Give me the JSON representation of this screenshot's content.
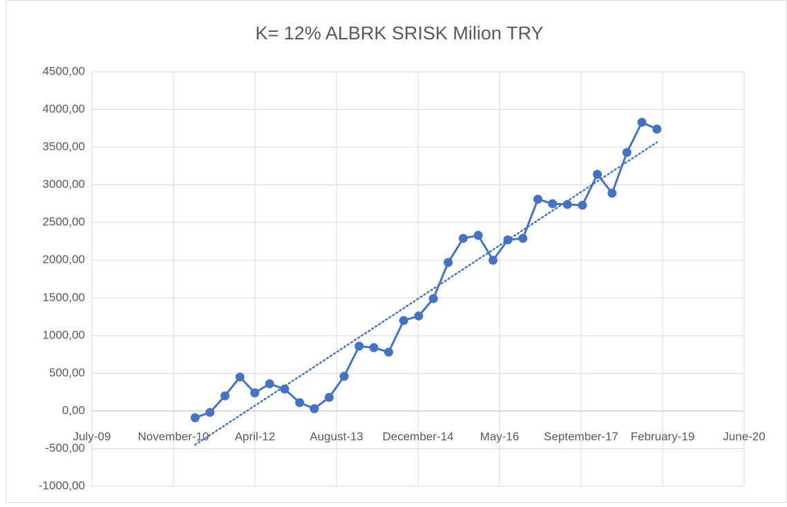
{
  "chart_data": {
    "type": "line",
    "title": "K= 12%  ALBRK SRISK Milion TRY",
    "x": [
      40633,
      40724,
      40816,
      40908,
      40999,
      41090,
      41182,
      41274,
      41364,
      41455,
      41547,
      41639,
      41729,
      41820,
      41912,
      42004,
      42094,
      42185,
      42277,
      42369,
      42460,
      42551,
      42643,
      42735,
      42825,
      42916,
      43008,
      43100,
      43190,
      43281,
      43373,
      43465
    ],
    "series": [
      {
        "color": "#4472c4",
        "values": [
          -90,
          -20,
          200,
          450,
          240,
          360,
          290,
          110,
          30,
          180,
          460,
          860,
          840,
          780,
          1200,
          1260,
          1490,
          1970,
          2290,
          2330,
          2000,
          2270,
          2290,
          2810,
          2750,
          2740,
          2730,
          3140,
          2890,
          3430,
          3830,
          3740
        ]
      }
    ],
    "xlim": [
      40000,
      44000
    ],
    "xticks": [
      {
        "value": 40000,
        "label": "July-09"
      },
      {
        "value": 40500,
        "label": "November-10"
      },
      {
        "value": 41000,
        "label": "April-12"
      },
      {
        "value": 41500,
        "label": "August-13"
      },
      {
        "value": 42000,
        "label": "December-14"
      },
      {
        "value": 42500,
        "label": "May-16"
      },
      {
        "value": 43000,
        "label": "September-17"
      },
      {
        "value": 43500,
        "label": "February-19"
      },
      {
        "value": 44000,
        "label": "June-20"
      }
    ],
    "ylim": [
      -1000,
      4500
    ],
    "yticks": [
      {
        "value": -1000,
        "label": "-1000,00"
      },
      {
        "value": -500,
        "label": "-500,00"
      },
      {
        "value": 0,
        "label": "0,00"
      },
      {
        "value": 500,
        "label": "500,00"
      },
      {
        "value": 1000,
        "label": "1000,00"
      },
      {
        "value": 1500,
        "label": "1500,00"
      },
      {
        "value": 2000,
        "label": "2000,00"
      },
      {
        "value": 2500,
        "label": "2500,00"
      },
      {
        "value": 3000,
        "label": "3000,00"
      },
      {
        "value": 3500,
        "label": "3500,00"
      },
      {
        "value": 4000,
        "label": "4000,00"
      },
      {
        "value": 4500,
        "label": "4500,00"
      }
    ],
    "grid": true,
    "trendline": true
  }
}
